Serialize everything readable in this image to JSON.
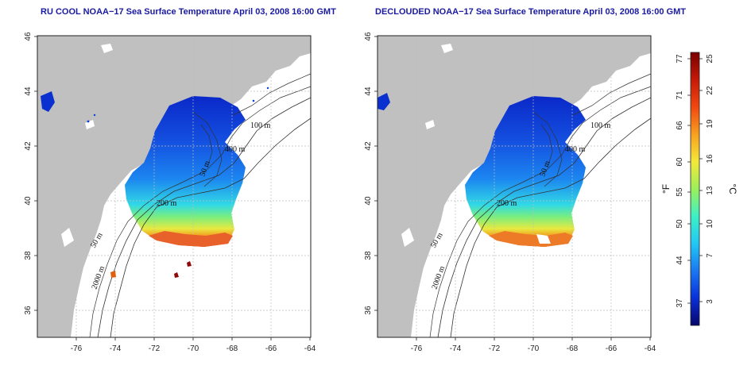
{
  "maps": [
    {
      "title": "RU COOL NOAA−17 Sea Surface Temperature April 03, 2008 16:00 GMT",
      "x_ticks": [
        "-76",
        "-74",
        "-72",
        "-70",
        "-68",
        "-66",
        "-64"
      ],
      "y_ticks": [
        "36",
        "38",
        "40",
        "42",
        "44",
        "46"
      ],
      "contour_labels": [
        "100 m",
        "400 m",
        "50 m",
        "200 m",
        "50 m",
        "2000 m"
      ]
    },
    {
      "title": "DECLOUDED NOAA−17 Sea Surface Temperature April 03, 2008 16:00 GMT",
      "x_ticks": [
        "-76",
        "-74",
        "-72",
        "-70",
        "-68",
        "-66",
        "-64"
      ],
      "y_ticks": [
        "36",
        "38",
        "40",
        "42",
        "44",
        "46"
      ],
      "contour_labels": [
        "100 m",
        "400 m",
        "50 m",
        "200 m",
        "50 m",
        "2000 m"
      ]
    }
  ],
  "colorbar": {
    "fahrenheit_unit": "°F",
    "celsius_unit": "°C",
    "fahrenheit_ticks": [
      "77",
      "71",
      "66",
      "60",
      "55",
      "50",
      "44",
      "37"
    ],
    "celsius_ticks": [
      "25",
      "22",
      "19",
      "16",
      "13",
      "10",
      "7",
      "3"
    ],
    "colors": [
      "#08086e",
      "#0a2fd6",
      "#1e7ef2",
      "#2ad0f0",
      "#3ef0c6",
      "#9cf05a",
      "#f4ee3a",
      "#f6a020",
      "#e23a10",
      "#8e0a08"
    ]
  },
  "colors": {
    "land": "#c0c0c0",
    "grid": "#bdbdbd",
    "title": "#1a1aa0"
  }
}
